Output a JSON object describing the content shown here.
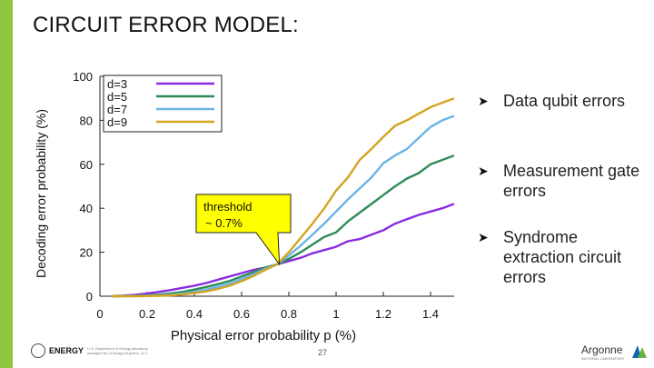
{
  "slide": {
    "title": "CIRCUIT ERROR MODEL:",
    "accent_color": "#8dc63f",
    "page_number": "27"
  },
  "bullets": [
    {
      "text": "Data qubit errors"
    },
    {
      "text": "Measurement gate errors"
    },
    {
      "text": "Syndrome extraction circuit errors"
    }
  ],
  "callout": {
    "line1": "threshold",
    "line2": "~ 0.7%",
    "fill": "#ffff00"
  },
  "footer": {
    "left_logo_text": "ENERGY",
    "left_fineprint": "U.S. Department of Energy laboratory managed by UChicago Argonne, LLC.",
    "right_logo_text": "Argonne",
    "right_logo_sub": "NATIONAL LABORATORY"
  },
  "chart_data": {
    "type": "line",
    "title": "",
    "xlabel": "Physical error probability p (%)",
    "ylabel": "Decoding error probability (%)",
    "xlim": [
      0,
      1.5
    ],
    "ylim": [
      0,
      100
    ],
    "xticks": [
      "0",
      "0.2",
      "0.4",
      "0.6",
      "0.8",
      "1",
      "1.2",
      "1.4"
    ],
    "yticks": [
      "0",
      "20",
      "40",
      "60",
      "80",
      "100"
    ],
    "legend_position": "top-left",
    "grid": false,
    "x": [
      0.05,
      0.1,
      0.15,
      0.2,
      0.25,
      0.3,
      0.35,
      0.4,
      0.45,
      0.5,
      0.55,
      0.6,
      0.65,
      0.7,
      0.75,
      0.8,
      0.85,
      0.9,
      0.95,
      1.0,
      1.05,
      1.1,
      1.15,
      1.2,
      1.25,
      1.3,
      1.35,
      1.4,
      1.45,
      1.5
    ],
    "series": [
      {
        "name": "d=3",
        "color": "#8a2be2",
        "values": [
          0.1,
          0.3,
          0.6,
          1.2,
          2.0,
          2.8,
          3.8,
          4.8,
          6.0,
          7.5,
          9.0,
          10.5,
          12.0,
          13.0,
          14.5,
          16.0,
          17.5,
          19.5,
          21.0,
          22.5,
          25.0,
          26.0,
          28.0,
          30.0,
          33.0,
          35.0,
          37.0,
          38.5,
          40.0,
          42.0
        ]
      },
      {
        "name": "d=5",
        "color": "#2e8b57",
        "values": [
          0.0,
          0.1,
          0.2,
          0.4,
          0.8,
          1.3,
          2.0,
          3.0,
          4.2,
          5.5,
          7.0,
          9.0,
          11.0,
          13.0,
          14.5,
          17.0,
          20.0,
          23.5,
          27.0,
          29.0,
          34.0,
          38.0,
          42.0,
          46.0,
          50.0,
          53.5,
          56.0,
          60.0,
          62.0,
          64.0
        ]
      },
      {
        "name": "d=7",
        "color": "#6cb4e4",
        "values": [
          0.0,
          0.0,
          0.1,
          0.2,
          0.4,
          0.7,
          1.2,
          2.0,
          3.0,
          4.3,
          5.8,
          7.8,
          10.0,
          12.5,
          14.5,
          18.5,
          23.0,
          28.0,
          33.0,
          38.5,
          44.0,
          49.0,
          54.0,
          60.5,
          64.0,
          67.0,
          72.0,
          77.0,
          80.0,
          82.0
        ]
      },
      {
        "name": "d=9",
        "color": "#d4a520",
        "values": [
          0.0,
          0.0,
          0.0,
          0.1,
          0.2,
          0.4,
          0.8,
          1.4,
          2.2,
          3.3,
          4.8,
          6.8,
          9.2,
          12.0,
          14.5,
          20.0,
          26.5,
          33.0,
          40.0,
          48.0,
          54.0,
          62.0,
          67.0,
          72.5,
          77.5,
          80.0,
          83.0,
          86.0,
          88.0,
          90.0
        ]
      }
    ],
    "crossing_point": {
      "x": 0.76,
      "y": 14.5
    }
  }
}
